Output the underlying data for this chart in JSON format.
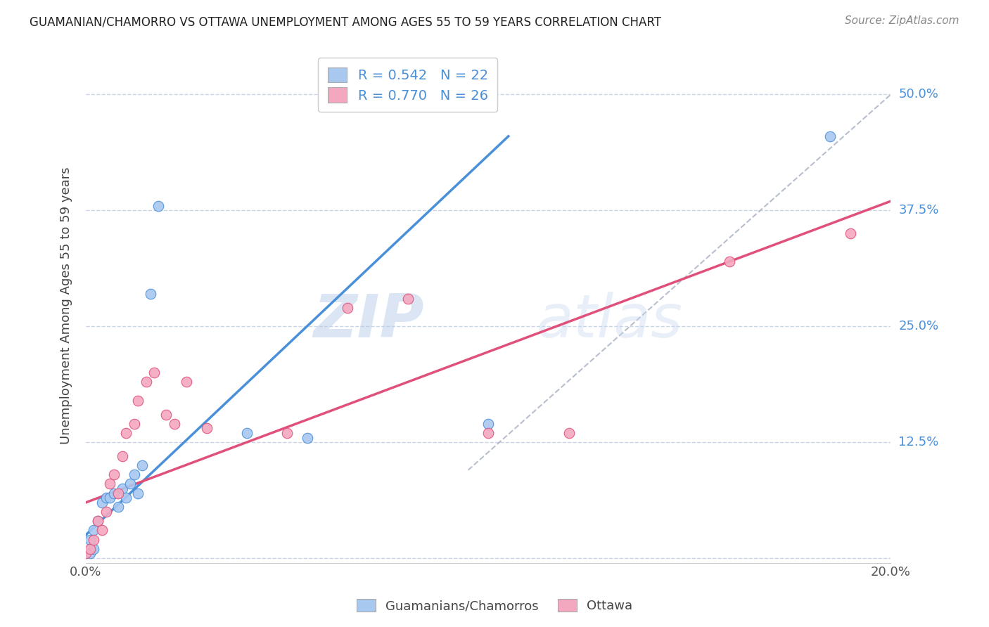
{
  "title": "GUAMANIAN/CHAMORRO VS OTTAWA UNEMPLOYMENT AMONG AGES 55 TO 59 YEARS CORRELATION CHART",
  "source": "Source: ZipAtlas.com",
  "ylabel": "Unemployment Among Ages 55 to 59 years",
  "xlim": [
    0.0,
    0.2
  ],
  "ylim": [
    -0.005,
    0.55
  ],
  "xticks": [
    0.0,
    0.05,
    0.1,
    0.15,
    0.2
  ],
  "xticklabels": [
    "0.0%",
    "",
    "",
    "",
    "20.0%"
  ],
  "ytick_positions": [
    0.0,
    0.125,
    0.25,
    0.375,
    0.5
  ],
  "ytick_labels": [
    "",
    "12.5%",
    "25.0%",
    "37.5%",
    "50.0%"
  ],
  "blue_color": "#a8c8f0",
  "pink_color": "#f4a8c0",
  "blue_line_color": "#4a90d9",
  "pink_line_color": "#e0507a",
  "legend_blue_R": "0.542",
  "legend_blue_N": "22",
  "legend_pink_R": "0.770",
  "legend_pink_N": "26",
  "legend_label_blue": "Guamanians/Chamorros",
  "legend_label_pink": "Ottawa",
  "watermark_zip": "ZIP",
  "watermark_atlas": "atlas",
  "blue_scatter_x": [
    0.001,
    0.001,
    0.002,
    0.002,
    0.003,
    0.004,
    0.005,
    0.006,
    0.007,
    0.008,
    0.009,
    0.01,
    0.011,
    0.012,
    0.013,
    0.014,
    0.016,
    0.018,
    0.04,
    0.055,
    0.1,
    0.185
  ],
  "blue_scatter_y": [
    0.005,
    0.02,
    0.01,
    0.03,
    0.04,
    0.06,
    0.065,
    0.065,
    0.07,
    0.055,
    0.075,
    0.065,
    0.08,
    0.09,
    0.07,
    0.1,
    0.285,
    0.38,
    0.135,
    0.13,
    0.145,
    0.455
  ],
  "pink_scatter_x": [
    0.0,
    0.001,
    0.002,
    0.003,
    0.004,
    0.005,
    0.006,
    0.007,
    0.008,
    0.009,
    0.01,
    0.012,
    0.013,
    0.015,
    0.017,
    0.02,
    0.022,
    0.025,
    0.03,
    0.05,
    0.065,
    0.08,
    0.1,
    0.12,
    0.16,
    0.19
  ],
  "pink_scatter_y": [
    0.005,
    0.01,
    0.02,
    0.04,
    0.03,
    0.05,
    0.08,
    0.09,
    0.07,
    0.11,
    0.135,
    0.145,
    0.17,
    0.19,
    0.2,
    0.155,
    0.145,
    0.19,
    0.14,
    0.135,
    0.27,
    0.28,
    0.135,
    0.135,
    0.32,
    0.35
  ],
  "blue_line_x": [
    0.0,
    0.105
  ],
  "blue_line_y": [
    0.025,
    0.455
  ],
  "pink_line_x": [
    0.0,
    0.2
  ],
  "pink_line_y": [
    0.06,
    0.385
  ],
  "diag_line_x": [
    0.095,
    0.2
  ],
  "diag_line_y": [
    0.095,
    0.5
  ],
  "background_color": "#ffffff",
  "grid_color": "#c8d4e8"
}
